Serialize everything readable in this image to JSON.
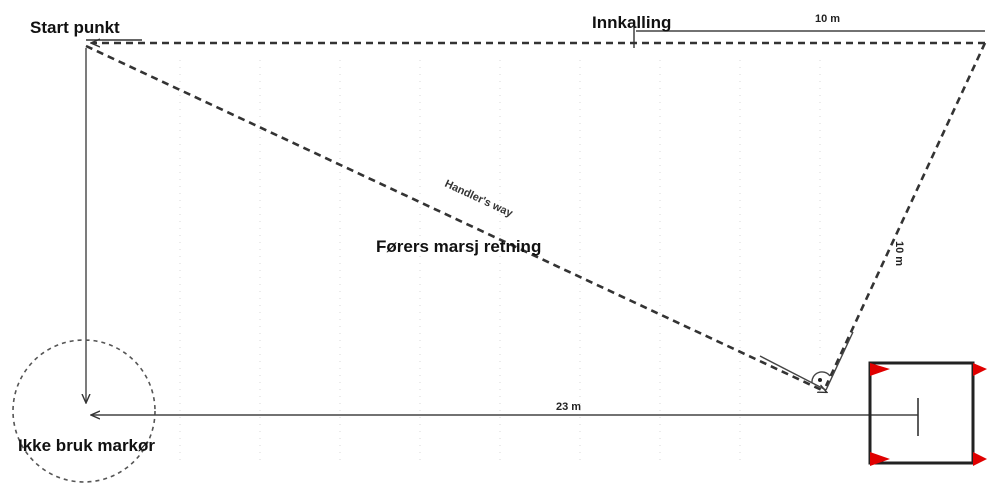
{
  "labels": {
    "start_point": "Start punkt",
    "recall": "Innkalling",
    "top_distance": "10 m",
    "diagonal_distance": "10 m",
    "handlers_way": "Handler's way",
    "handler_direction": "Førers marsj retning",
    "bottom_distance": "23 m",
    "no_marker": "Ikke bruk markør"
  },
  "colors": {
    "line": "#333333",
    "flag": "#e00000",
    "box": "#222222"
  }
}
